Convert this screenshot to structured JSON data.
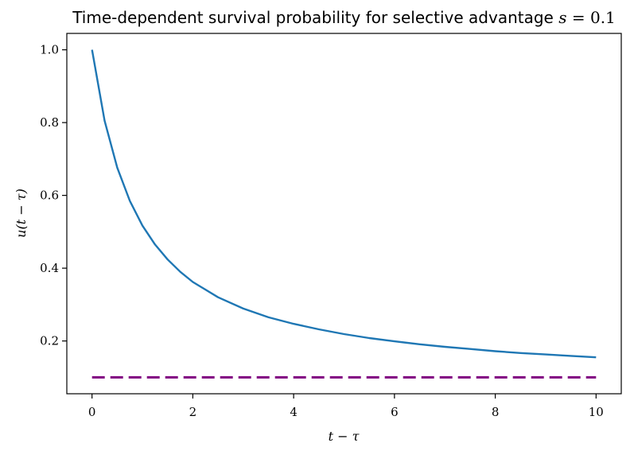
{
  "chart_data": {
    "type": "line",
    "title_text": "Time-dependent survival probability for selective advantage ",
    "title_math_var": "s",
    "title_math_eq": " = ",
    "title_math_val": "0.1",
    "xlabel": "t − τ",
    "ylabel": "u(t − τ)",
    "xlim": [
      -0.5,
      10.5
    ],
    "ylim": [
      0.055,
      1.045
    ],
    "xticks": [
      0,
      2,
      4,
      6,
      8,
      10
    ],
    "xtick_labels": [
      "0",
      "2",
      "4",
      "6",
      "8",
      "10"
    ],
    "yticks": [
      0.2,
      0.4,
      0.6,
      0.8,
      1.0
    ],
    "ytick_labels": [
      "0.2",
      "0.4",
      "0.6",
      "0.8",
      "1.0"
    ],
    "grid": false,
    "series": [
      {
        "color": "#1f77b4",
        "style": "solid",
        "x": [
          0,
          0.25,
          0.5,
          0.75,
          1,
          1.25,
          1.5,
          1.75,
          2,
          2.5,
          3,
          3.5,
          4,
          4.5,
          5,
          5.5,
          6,
          6.5,
          7,
          7.5,
          8,
          8.5,
          9,
          9.5,
          10
        ],
        "y": [
          1.0,
          0.805,
          0.676,
          0.585,
          0.517,
          0.465,
          0.424,
          0.39,
          0.362,
          0.32,
          0.289,
          0.265,
          0.247,
          0.232,
          0.219,
          0.208,
          0.199,
          0.191,
          0.184,
          0.178,
          0.172,
          0.167,
          0.163,
          0.159,
          0.155
        ]
      },
      {
        "color": "#800080",
        "style": "dashed",
        "x": [
          0,
          10
        ],
        "y": [
          0.1,
          0.1
        ]
      }
    ]
  }
}
